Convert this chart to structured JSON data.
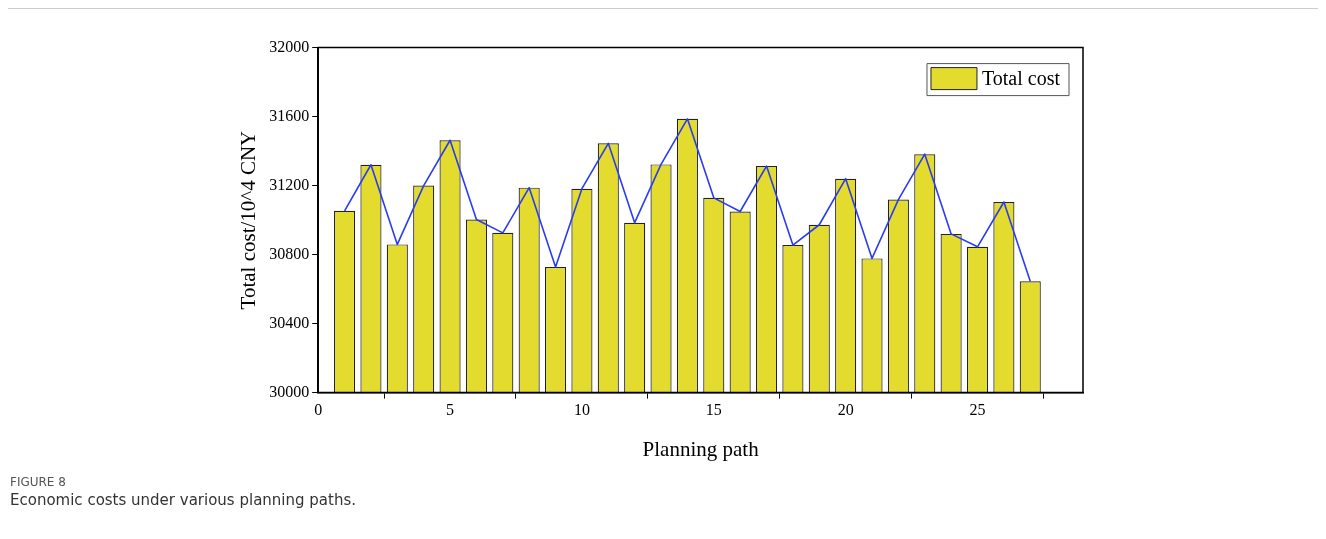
{
  "chart_data": {
    "type": "bar",
    "xlabel": "Planning path",
    "ylabel": "Total cost/10^4 CNY",
    "x": [
      1,
      2,
      3,
      4,
      5,
      6,
      7,
      8,
      9,
      10,
      11,
      12,
      13,
      14,
      15,
      16,
      17,
      18,
      19,
      20,
      21,
      22,
      23,
      24,
      25,
      26,
      27
    ],
    "series": [
      {
        "name": "Total cost",
        "color": "#e3dc2e",
        "values": [
          31054,
          31321,
          30859,
          31200,
          31463,
          31003,
          30926,
          31188,
          30728,
          31182,
          31445,
          30985,
          31323,
          31587,
          31129,
          31050,
          31313,
          30855,
          30973,
          31240,
          30778,
          31119,
          31382,
          30920,
          30845,
          31105,
          30645
        ]
      },
      {
        "type": "line",
        "color": "#2a3cf0",
        "values": [
          31054,
          31321,
          30859,
          31200,
          31463,
          31003,
          30926,
          31188,
          30728,
          31182,
          31445,
          30985,
          31323,
          31587,
          31129,
          31050,
          31313,
          30855,
          30973,
          31240,
          30778,
          31119,
          31382,
          30920,
          30845,
          31105,
          30645
        ]
      }
    ],
    "xlim": [
      0,
      29
    ],
    "xticks": [
      0,
      5,
      10,
      15,
      20,
      25
    ],
    "ylim": [
      30000,
      32000
    ],
    "yticks": [
      30000,
      30400,
      30800,
      31200,
      31600,
      32000
    ],
    "grid": false,
    "legend": "top right",
    "marker": "none",
    "annotations": [
      "FIGURE 8",
      "Economic costs under various planning paths."
    ]
  }
}
